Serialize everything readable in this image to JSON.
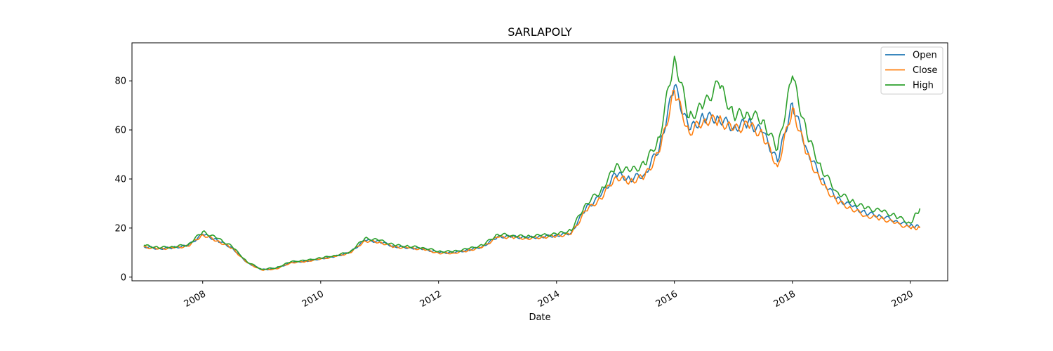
{
  "chart_data": {
    "type": "line",
    "title": "SARLAPOLY",
    "xlabel": "Date",
    "ylabel": "",
    "x_axis": "date",
    "xlim": [
      "2006-10-20",
      "2020-08-20"
    ],
    "ylim": [
      -1.5,
      95.5
    ],
    "x_ticks": [
      "2008",
      "2010",
      "2012",
      "2014",
      "2016",
      "2018",
      "2020"
    ],
    "y_ticks": [
      0,
      20,
      40,
      60,
      80
    ],
    "grid": false,
    "legend_position": "top-right",
    "dates": [
      "2007-01-01",
      "2007-04-01",
      "2007-07-01",
      "2007-10-01",
      "2008-01-01",
      "2008-04-01",
      "2008-07-01",
      "2008-10-01",
      "2009-01-01",
      "2009-04-01",
      "2009-07-01",
      "2009-10-01",
      "2010-01-01",
      "2010-04-01",
      "2010-07-01",
      "2010-10-01",
      "2011-01-01",
      "2011-04-01",
      "2011-07-01",
      "2011-10-01",
      "2012-01-01",
      "2012-04-01",
      "2012-07-01",
      "2012-10-01",
      "2013-01-01",
      "2013-04-01",
      "2013-07-01",
      "2013-10-01",
      "2014-01-01",
      "2014-04-01",
      "2014-07-01",
      "2014-10-01",
      "2015-01-01",
      "2015-04-01",
      "2015-07-01",
      "2015-10-01",
      "2016-01-01",
      "2016-04-01",
      "2016-07-01",
      "2016-10-01",
      "2017-01-01",
      "2017-04-01",
      "2017-07-01",
      "2017-10-01",
      "2018-01-01",
      "2018-04-01",
      "2018-07-01",
      "2018-10-01",
      "2019-01-01",
      "2019-04-01",
      "2019-07-01",
      "2019-10-01",
      "2020-01-01",
      "2020-03-01"
    ],
    "series": [
      {
        "name": "Open",
        "color": "#1f77b4",
        "values": [
          12.5,
          11.6,
          12.0,
          12.8,
          17.5,
          15.0,
          12.0,
          6.0,
          3.0,
          3.5,
          6.0,
          6.5,
          7.5,
          8.5,
          10.0,
          15.0,
          14.5,
          12.5,
          12.0,
          11.5,
          10.0,
          10.0,
          11.0,
          12.5,
          16.5,
          16.5,
          16.0,
          16.5,
          17.0,
          18.0,
          28.0,
          33.0,
          42.0,
          40.0,
          42.0,
          53.0,
          78.0,
          60.0,
          65.0,
          65.0,
          61.0,
          63.0,
          59.0,
          47.0,
          71.0,
          52.0,
          40.0,
          32.0,
          29.0,
          26.0,
          25.0,
          23.0,
          21.0,
          20.5
        ]
      },
      {
        "name": "Close",
        "color": "#ff7f0e",
        "values": [
          12.3,
          11.5,
          11.9,
          12.6,
          17.3,
          14.8,
          11.8,
          5.9,
          2.9,
          3.4,
          5.9,
          6.4,
          7.4,
          8.4,
          9.9,
          14.8,
          14.3,
          12.3,
          11.9,
          11.3,
          9.8,
          9.8,
          10.8,
          12.3,
          16.3,
          16.3,
          15.8,
          16.3,
          16.8,
          17.5,
          27.0,
          32.0,
          41.0,
          39.0,
          41.0,
          51.0,
          76.0,
          59.0,
          64.0,
          64.0,
          60.0,
          62.0,
          58.0,
          45.0,
          69.0,
          50.0,
          38.0,
          31.0,
          28.0,
          25.0,
          24.0,
          22.0,
          20.0,
          20.0
        ]
      },
      {
        "name": "High",
        "color": "#2ca02c",
        "values": [
          13.0,
          12.0,
          12.4,
          13.2,
          18.5,
          15.8,
          12.5,
          6.3,
          3.2,
          3.8,
          6.3,
          6.8,
          7.8,
          8.8,
          10.3,
          15.8,
          15.0,
          13.0,
          12.5,
          12.0,
          10.5,
          10.4,
          11.5,
          13.0,
          17.5,
          17.0,
          16.5,
          17.0,
          17.5,
          19.0,
          30.0,
          35.0,
          45.0,
          43.0,
          46.0,
          57.0,
          90.0,
          65.0,
          70.0,
          79.0,
          66.0,
          67.0,
          64.0,
          52.0,
          82.0,
          58.0,
          44.0,
          35.0,
          31.0,
          28.0,
          27.0,
          25.0,
          22.0,
          28.0
        ]
      }
    ]
  }
}
